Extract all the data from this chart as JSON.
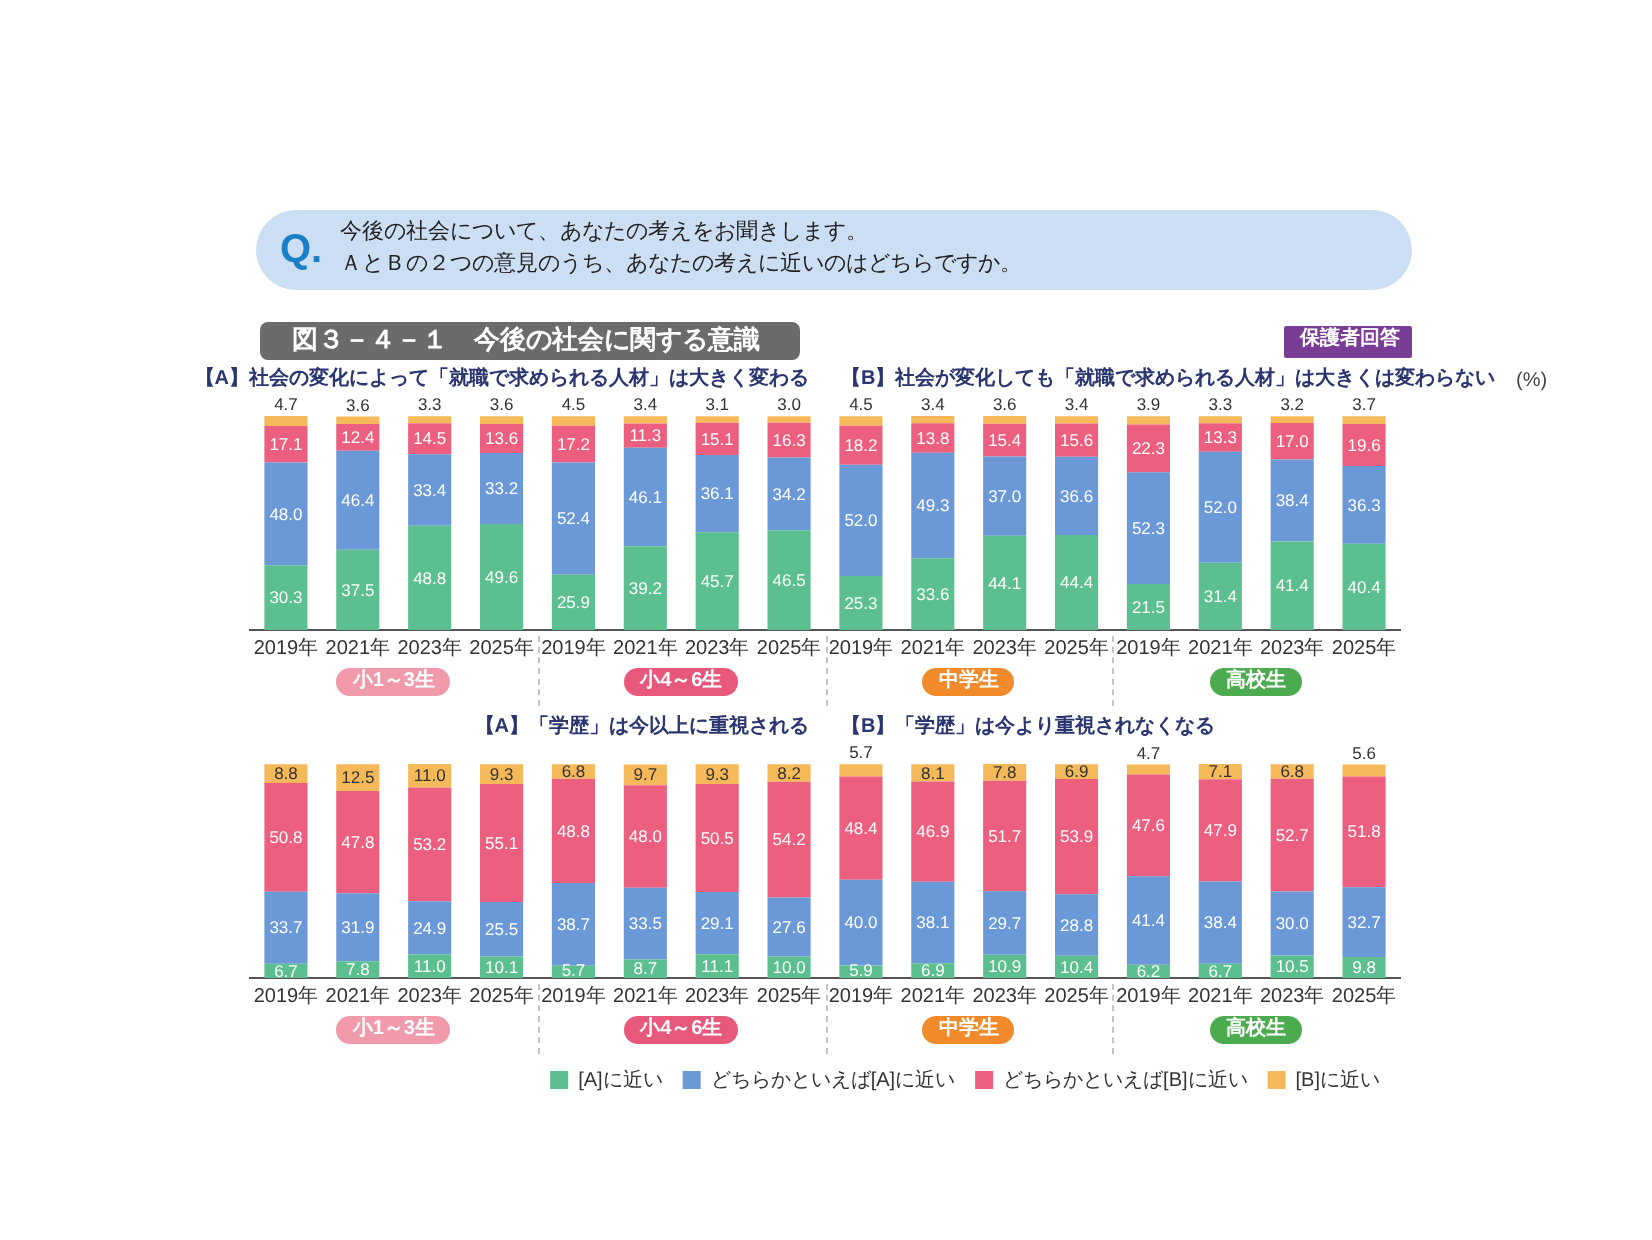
{
  "chart_data": [
    {
      "type": "bar",
      "title": "図３－４－１　今後の社会に関する意識",
      "subtitle": "今後の社会について、あなたの考えをお聞きします。ＡとＢの２つの意見のうち、あなたの考えに近いのはどちらですか。",
      "annotations": [
        "【A】社会の変化によって「就職で求められる人材」は大きく変わる",
        "【B】社会が変化しても「就職で求められる人材」は大きくは変わらない",
        "小1～3生",
        "小4～6生",
        "中学生",
        "高校生",
        "(%)",
        "保護者回答",
        "Q."
      ],
      "categories": [
        "2019年",
        "2021年",
        "2023年",
        "2025年",
        "2019年",
        "2021年",
        "2023年",
        "2025年",
        "2019年",
        "2021年",
        "2023年",
        "2025年",
        "2019年",
        "2021年",
        "2023年",
        "2025年"
      ],
      "stacked": true,
      "series": [
        {
          "color": "#5cbf8f",
          "values": [
            30.3,
            37.5,
            48.8,
            49.6,
            25.9,
            39.2,
            45.7,
            46.5,
            25.3,
            33.6,
            44.1,
            44.4,
            21.5,
            31.4,
            41.4,
            40.4
          ],
          "value_labels": [
            "30.3",
            "37.5",
            "48.8",
            "49.6",
            "25.9",
            "39.2",
            "45.7",
            "46.5",
            "25.3",
            "33.6",
            "44.1",
            "44.4",
            "21.5",
            "31.4",
            "41.4",
            "40.4"
          ]
        },
        {
          "color": "#6b99d7",
          "values": [
            48.0,
            46.4,
            33.4,
            33.2,
            52.4,
            46.1,
            36.1,
            34.2,
            52.0,
            49.3,
            37.0,
            36.6,
            52.3,
            52.0,
            38.4,
            36.3
          ],
          "value_labels": [
            "48.0",
            "46.4",
            "33.4",
            "33.2",
            "52.4",
            "46.1",
            "36.1",
            "34.2",
            "52.0",
            "49.3",
            "37.0",
            "36.6",
            "52.3",
            "52.0",
            "38.4",
            "36.3"
          ]
        },
        {
          "color": "#ed5f7f",
          "values": [
            17.1,
            12.4,
            14.5,
            13.6,
            17.2,
            11.3,
            15.1,
            16.3,
            18.2,
            13.8,
            15.4,
            15.6,
            22.3,
            13.3,
            17.0,
            19.6
          ],
          "value_labels": [
            "17.1",
            "12.4",
            "14.5",
            "13.6",
            "17.2",
            "11.3",
            "15.1",
            "16.3",
            "18.2",
            "13.8",
            "15.4",
            "15.6",
            "22.3",
            "13.3",
            "17.0",
            "19.6"
          ]
        },
        {
          "color": "#f6b959",
          "values": [
            4.7,
            3.6,
            3.3,
            3.6,
            4.5,
            3.4,
            3.1,
            3.0,
            4.5,
            3.4,
            3.6,
            3.4,
            3.9,
            3.3,
            3.2,
            3.7
          ],
          "value_labels": [
            "4.7",
            "3.6",
            "3.3",
            "3.6",
            "4.5",
            "3.4",
            "3.1",
            "3.0",
            "4.5",
            "3.4",
            "3.6",
            "3.4",
            "3.9",
            "3.3",
            "3.2",
            "3.7"
          ]
        }
      ]
    },
    {
      "type": "bar",
      "annotations": [
        "【A】「学歴」は今以上に重視される",
        "【B】「学歴」は今より重視されなくなる",
        "小1～3生",
        "小4～6生",
        "中学生",
        "高校生"
      ],
      "categories": [
        "2019年",
        "2021年",
        "2023年",
        "2025年",
        "2019年",
        "2021年",
        "2023年",
        "2025年",
        "2019年",
        "2021年",
        "2023年",
        "2025年",
        "2019年",
        "2021年",
        "2023年",
        "2025年"
      ],
      "stacked": true,
      "legend": "bottom right",
      "series": [
        {
          "name": "[A]に近い",
          "color": "#5cbf8f",
          "values": [
            6.7,
            7.8,
            11.0,
            10.1,
            5.7,
            8.7,
            11.1,
            10.0,
            5.9,
            6.9,
            10.9,
            10.4,
            6.2,
            6.7,
            10.5,
            9.8
          ],
          "value_labels": [
            "6.7",
            "7.8",
            "11.0",
            "10.1",
            "5.7",
            "8.7",
            "11.1",
            "10.0",
            "5.9",
            "6.9",
            "10.9",
            "10.4",
            "6.2",
            "6.7",
            "10.5",
            "9.8"
          ]
        },
        {
          "name": "どちらかといえば[A]に近い",
          "color": "#6b99d7",
          "values": [
            33.7,
            31.9,
            24.9,
            25.5,
            38.7,
            33.5,
            29.1,
            27.6,
            40.0,
            38.1,
            29.7,
            28.8,
            41.4,
            38.4,
            30.0,
            32.7
          ],
          "value_labels": [
            "33.7",
            "31.9",
            "24.9",
            "25.5",
            "38.7",
            "33.5",
            "29.1",
            "27.6",
            "40.0",
            "38.1",
            "29.7",
            "28.8",
            "41.4",
            "38.4",
            "30.0",
            "32.7"
          ]
        },
        {
          "name": "どちらかといえば[B]に近い",
          "color": "#ed5f7f",
          "values": [
            50.8,
            47.8,
            53.2,
            55.1,
            48.8,
            48.0,
            50.5,
            54.2,
            48.4,
            46.9,
            51.7,
            53.9,
            47.6,
            47.9,
            52.7,
            51.8
          ],
          "value_labels": [
            "50.8",
            "47.8",
            "53.2",
            "55.1",
            "48.8",
            "48.0",
            "50.5",
            "54.2",
            "48.4",
            "46.9",
            "51.7",
            "53.9",
            "47.6",
            "47.9",
            "52.7",
            "51.8"
          ]
        },
        {
          "name": "[B]に近い",
          "color": "#f6b959",
          "values": [
            8.8,
            12.5,
            11.0,
            9.3,
            6.8,
            9.7,
            9.3,
            8.2,
            5.7,
            8.1,
            7.8,
            6.9,
            4.7,
            7.1,
            6.8,
            5.6
          ],
          "value_labels": [
            "8.8",
            "12.5",
            "11.0",
            "9.3",
            "6.8",
            "9.7",
            "9.3",
            "8.2",
            "5.7",
            "8.1",
            "7.8",
            "6.9",
            "4.7",
            "7.1",
            "6.8",
            "5.6"
          ]
        }
      ]
    }
  ]
}
